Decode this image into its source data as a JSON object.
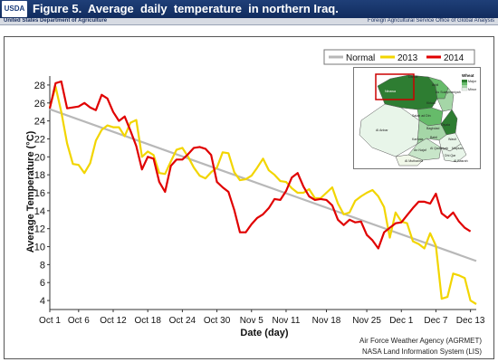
{
  "header": {
    "logo_text": "USDA",
    "title": "Figure 5.  Average  daily  temperature  in northern Iraq.",
    "agency_left": "United States Department of Agriculture",
    "agency_right": "Foreign Agricultural Service   Office of Global Analysis"
  },
  "credits": {
    "line1": "Air Force Weather Agency (AGRMET)",
    "line2": "NASA Land Information System (LIS)"
  },
  "map_inset": {
    "legend_title": "Wheat",
    "legend_items": [
      "Major",
      "Minor"
    ],
    "region_labels": [
      "Dahuk",
      "Arbil",
      "Ninawa",
      "As Sulaymaniyah",
      "Kirkuk",
      "Salah ad Din",
      "Al Anbar",
      "Diyala",
      "Baghdad",
      "Babil",
      "Wasit",
      "Karbala",
      "An Najaf",
      "Al Qadisiyah",
      "Maysan",
      "Dhi Qar",
      "Al Muthanna",
      "Al Basrah"
    ],
    "colors": {
      "major": "#2e7d32",
      "mid": "#66bb6a",
      "light": "#a5d6a7",
      "minor": "#e8f5e9",
      "highlight_box": "#cc0000"
    }
  },
  "chart_data": {
    "type": "line",
    "title": "",
    "xlabel": "Date (day)",
    "ylabel": "Average Temperature (°C)",
    "ylim": [
      3,
      29
    ],
    "xlim": [
      1,
      75
    ],
    "x_unit": "day of period (1 = Oct 1)",
    "xticks": [
      {
        "label": "Oct 1",
        "day": 1
      },
      {
        "label": "Oct 6",
        "day": 6
      },
      {
        "label": "Oct 12",
        "day": 12
      },
      {
        "label": "Oct 18",
        "day": 18
      },
      {
        "label": "Oct 24",
        "day": 24
      },
      {
        "label": "Oct 30",
        "day": 30
      },
      {
        "label": "Nov 5",
        "day": 36
      },
      {
        "label": "Nov 11",
        "day": 42
      },
      {
        "label": "Nov 18",
        "day": 49
      },
      {
        "label": "Nov 25",
        "day": 56
      },
      {
        "label": "Dec 1",
        "day": 62
      },
      {
        "label": "Dec 7",
        "day": 68
      },
      {
        "label": "Dec 13",
        "day": 74
      }
    ],
    "yticks": [
      4,
      6,
      8,
      10,
      12,
      14,
      16,
      18,
      20,
      22,
      24,
      26,
      28
    ],
    "grid": false,
    "legend_position": "top-right",
    "series": [
      {
        "name": "Normal",
        "color": "#b8b8b8",
        "points": [
          [
            1,
            25.3
          ],
          [
            75,
            8.4
          ]
        ]
      },
      {
        "name": "2013",
        "color": "#f2d500",
        "points": [
          [
            1,
            25.5
          ],
          [
            2,
            27.8
          ],
          [
            3,
            25.0
          ],
          [
            4,
            21.5
          ],
          [
            5,
            19.2
          ],
          [
            6,
            19.1
          ],
          [
            7,
            18.2
          ],
          [
            8,
            19.3
          ],
          [
            9,
            21.8
          ],
          [
            10,
            23.0
          ],
          [
            11,
            23.5
          ],
          [
            12,
            23.3
          ],
          [
            13,
            23.3
          ],
          [
            14,
            22.3
          ],
          [
            15,
            23.8
          ],
          [
            16,
            24.1
          ],
          [
            17,
            20.0
          ],
          [
            18,
            20.6
          ],
          [
            19,
            20.2
          ],
          [
            20,
            18.2
          ],
          [
            21,
            18.1
          ],
          [
            22,
            19.5
          ],
          [
            23,
            20.8
          ],
          [
            24,
            21.0
          ],
          [
            25,
            20.0
          ],
          [
            26,
            18.8
          ],
          [
            27,
            17.9
          ],
          [
            28,
            17.6
          ],
          [
            29,
            18.3
          ],
          [
            30,
            18.8
          ],
          [
            31,
            20.5
          ],
          [
            32,
            20.4
          ],
          [
            33,
            18.3
          ],
          [
            34,
            17.4
          ],
          [
            35,
            17.5
          ],
          [
            36,
            17.9
          ],
          [
            37,
            18.8
          ],
          [
            38,
            19.8
          ],
          [
            39,
            18.5
          ],
          [
            40,
            18.0
          ],
          [
            41,
            17.3
          ],
          [
            42,
            17.2
          ],
          [
            43,
            16.5
          ],
          [
            44,
            16.0
          ],
          [
            45,
            16.0
          ],
          [
            46,
            16.4
          ],
          [
            47,
            15.4
          ],
          [
            48,
            15.4
          ],
          [
            49,
            16.0
          ],
          [
            50,
            16.6
          ],
          [
            51,
            14.8
          ],
          [
            52,
            13.6
          ],
          [
            53,
            13.8
          ],
          [
            54,
            15.1
          ],
          [
            55,
            15.6
          ],
          [
            56,
            16.0
          ],
          [
            57,
            16.3
          ],
          [
            58,
            15.6
          ],
          [
            59,
            14.4
          ],
          [
            60,
            11.0
          ],
          [
            61,
            13.8
          ],
          [
            62,
            12.8
          ],
          [
            63,
            12.6
          ],
          [
            64,
            10.6
          ],
          [
            65,
            10.3
          ],
          [
            66,
            9.8
          ],
          [
            67,
            11.5
          ],
          [
            68,
            10.1
          ],
          [
            69,
            4.2
          ],
          [
            70,
            4.4
          ],
          [
            71,
            7.0
          ],
          [
            72,
            6.8
          ],
          [
            73,
            6.5
          ],
          [
            74,
            4.0
          ],
          [
            75,
            3.6
          ]
        ]
      },
      {
        "name": "2014",
        "color": "#e00000",
        "points": [
          [
            1,
            25.4
          ],
          [
            2,
            28.2
          ],
          [
            3,
            28.4
          ],
          [
            4,
            25.4
          ],
          [
            5,
            25.5
          ],
          [
            6,
            25.6
          ],
          [
            7,
            26.0
          ],
          [
            8,
            25.5
          ],
          [
            9,
            25.2
          ],
          [
            10,
            26.9
          ],
          [
            11,
            26.5
          ],
          [
            12,
            25.0
          ],
          [
            13,
            24.0
          ],
          [
            14,
            24.5
          ],
          [
            15,
            22.9
          ],
          [
            16,
            21.2
          ],
          [
            17,
            18.6
          ],
          [
            18,
            20.0
          ],
          [
            19,
            19.8
          ],
          [
            20,
            17.2
          ],
          [
            21,
            16.1
          ],
          [
            22,
            19.0
          ],
          [
            23,
            19.7
          ],
          [
            24,
            19.7
          ],
          [
            25,
            20.3
          ],
          [
            26,
            21.0
          ],
          [
            27,
            21.1
          ],
          [
            28,
            20.9
          ],
          [
            29,
            20.2
          ],
          [
            30,
            17.2
          ],
          [
            31,
            16.6
          ],
          [
            32,
            16.1
          ],
          [
            33,
            14.1
          ],
          [
            34,
            11.6
          ],
          [
            35,
            11.6
          ],
          [
            36,
            12.5
          ],
          [
            37,
            13.2
          ],
          [
            38,
            13.6
          ],
          [
            39,
            14.3
          ],
          [
            40,
            15.3
          ],
          [
            41,
            15.2
          ],
          [
            42,
            16.2
          ],
          [
            43,
            17.7
          ],
          [
            44,
            18.2
          ],
          [
            45,
            16.7
          ],
          [
            46,
            15.6
          ],
          [
            47,
            15.2
          ],
          [
            48,
            15.3
          ],
          [
            49,
            15.2
          ],
          [
            50,
            14.6
          ],
          [
            51,
            13.0
          ],
          [
            52,
            12.4
          ],
          [
            53,
            13.0
          ],
          [
            54,
            12.7
          ],
          [
            55,
            12.8
          ],
          [
            56,
            11.3
          ],
          [
            57,
            10.7
          ],
          [
            58,
            9.8
          ],
          [
            59,
            11.6
          ],
          [
            60,
            12.1
          ],
          [
            61,
            12.6
          ],
          [
            62,
            12.7
          ],
          [
            63,
            13.5
          ],
          [
            64,
            14.3
          ],
          [
            65,
            15.0
          ],
          [
            66,
            15.0
          ],
          [
            67,
            14.8
          ],
          [
            68,
            15.9
          ],
          [
            69,
            13.7
          ],
          [
            70,
            13.2
          ],
          [
            71,
            13.8
          ],
          [
            72,
            12.8
          ],
          [
            73,
            12.1
          ],
          [
            74,
            11.7
          ]
        ]
      }
    ]
  }
}
